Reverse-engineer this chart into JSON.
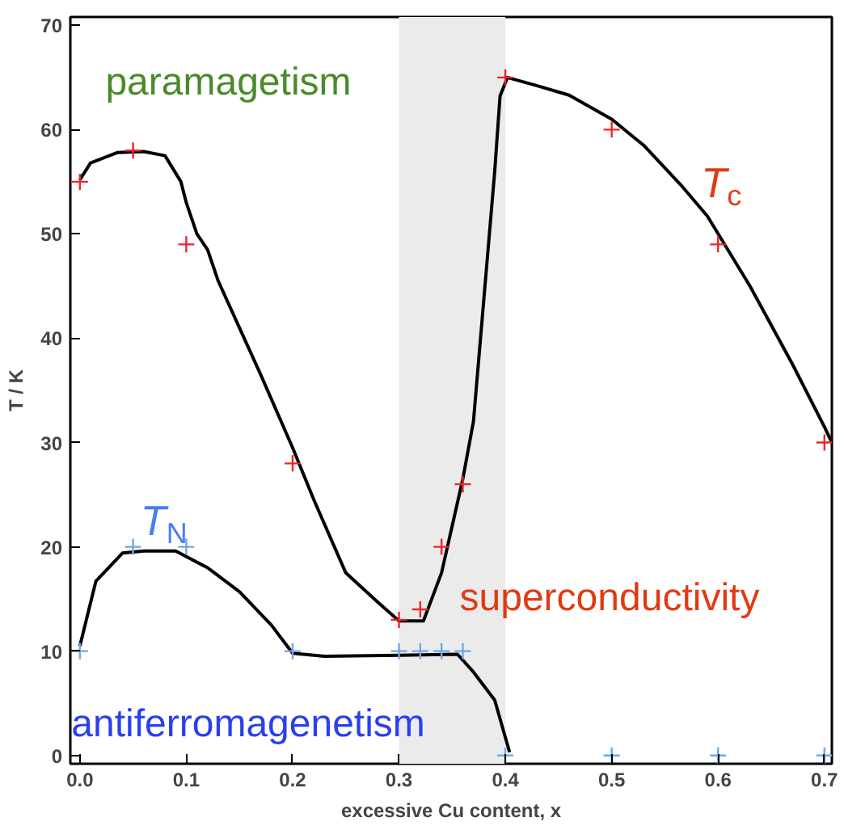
{
  "chart_data": {
    "type": "line",
    "xlabel": "excessive Cu content, x",
    "ylabel": "T / K",
    "xlim": [
      -0.009,
      0.707
    ],
    "ylim": [
      -0.8,
      70.8
    ],
    "xticks": [
      {
        "value": 0,
        "label": "0.0"
      },
      {
        "value": 0.1,
        "label": "0.1"
      },
      {
        "value": 0.2,
        "label": "0.2"
      },
      {
        "value": 0.3,
        "label": "0.3"
      },
      {
        "value": 0.4,
        "label": "0.4"
      },
      {
        "value": 0.5,
        "label": "0.5"
      },
      {
        "value": 0.6,
        "label": "0.6"
      },
      {
        "value": 0.7,
        "label": "0.7"
      }
    ],
    "yticks": [
      0,
      10,
      20,
      30,
      40,
      50,
      60,
      70
    ],
    "grid": false,
    "bands": [
      {
        "axis": "x",
        "from": 0.3,
        "to": 0.4,
        "color": "#ebebeb"
      }
    ],
    "series": [
      {
        "color": "#000000",
        "marker": "none",
        "line_style": "solid",
        "x": [
          0,
          0.01,
          0.035,
          0.06,
          0.08,
          0.095,
          0.1,
          0.11,
          0.12,
          0.13,
          0.15,
          0.17,
          0.2,
          0.22,
          0.25,
          0.28,
          0.3,
          0.323,
          0.34,
          0.35,
          0.36,
          0.37,
          0.38,
          0.39,
          0.395,
          0.402,
          0.43,
          0.46,
          0.5,
          0.53,
          0.565,
          0.59,
          0.63,
          0.67,
          0.7,
          0.707
        ],
        "values": [
          55.2,
          56.8,
          57.8,
          57.9,
          57.5,
          55,
          53,
          50,
          48.5,
          45.5,
          41,
          36.5,
          29.5,
          24.5,
          17.5,
          14.7,
          12.9,
          12.9,
          17.5,
          22,
          26.5,
          32,
          44,
          56,
          63.2,
          65,
          64.2,
          63.3,
          61,
          58.5,
          54.7,
          51.7,
          45,
          37.5,
          31.5,
          30
        ]
      },
      {
        "color": "#000000",
        "marker": "none",
        "line_style": "solid",
        "x": [
          0,
          0.015,
          0.04,
          0.06,
          0.09,
          0.12,
          0.15,
          0.18,
          0.2,
          0.23,
          0.3,
          0.355,
          0.37,
          0.39,
          0.404
        ],
        "values": [
          10.5,
          16.7,
          19.4,
          19.6,
          19.6,
          18,
          15.7,
          12.5,
          9.8,
          9.5,
          9.6,
          9.7,
          8,
          5.3,
          0.3
        ]
      },
      {
        "type": "scatter",
        "color": "#e8262a",
        "marker": "cross",
        "x": [
          0,
          0.05,
          0.1,
          0.2,
          0.3,
          0.32,
          0.34,
          0.36,
          0.4,
          0.5,
          0.6,
          0.7
        ],
        "values": [
          55,
          58,
          49,
          28,
          13,
          14,
          20,
          26,
          65,
          60,
          49,
          30
        ]
      },
      {
        "type": "scatter",
        "color": "#6fa8e8",
        "marker": "cross",
        "x": [
          0,
          0.05,
          0.1,
          0.2,
          0.3,
          0.32,
          0.34,
          0.36,
          0.4,
          0.5,
          0.6,
          0.7
        ],
        "values": [
          10,
          20,
          20,
          10,
          10,
          10,
          10,
          10,
          0,
          0,
          0,
          0
        ]
      }
    ],
    "annotations": [
      "paramagetism",
      "T$_{c}$",
      "T$_{N}$",
      "superconductivity",
      "antiferromagenetism"
    ]
  }
}
